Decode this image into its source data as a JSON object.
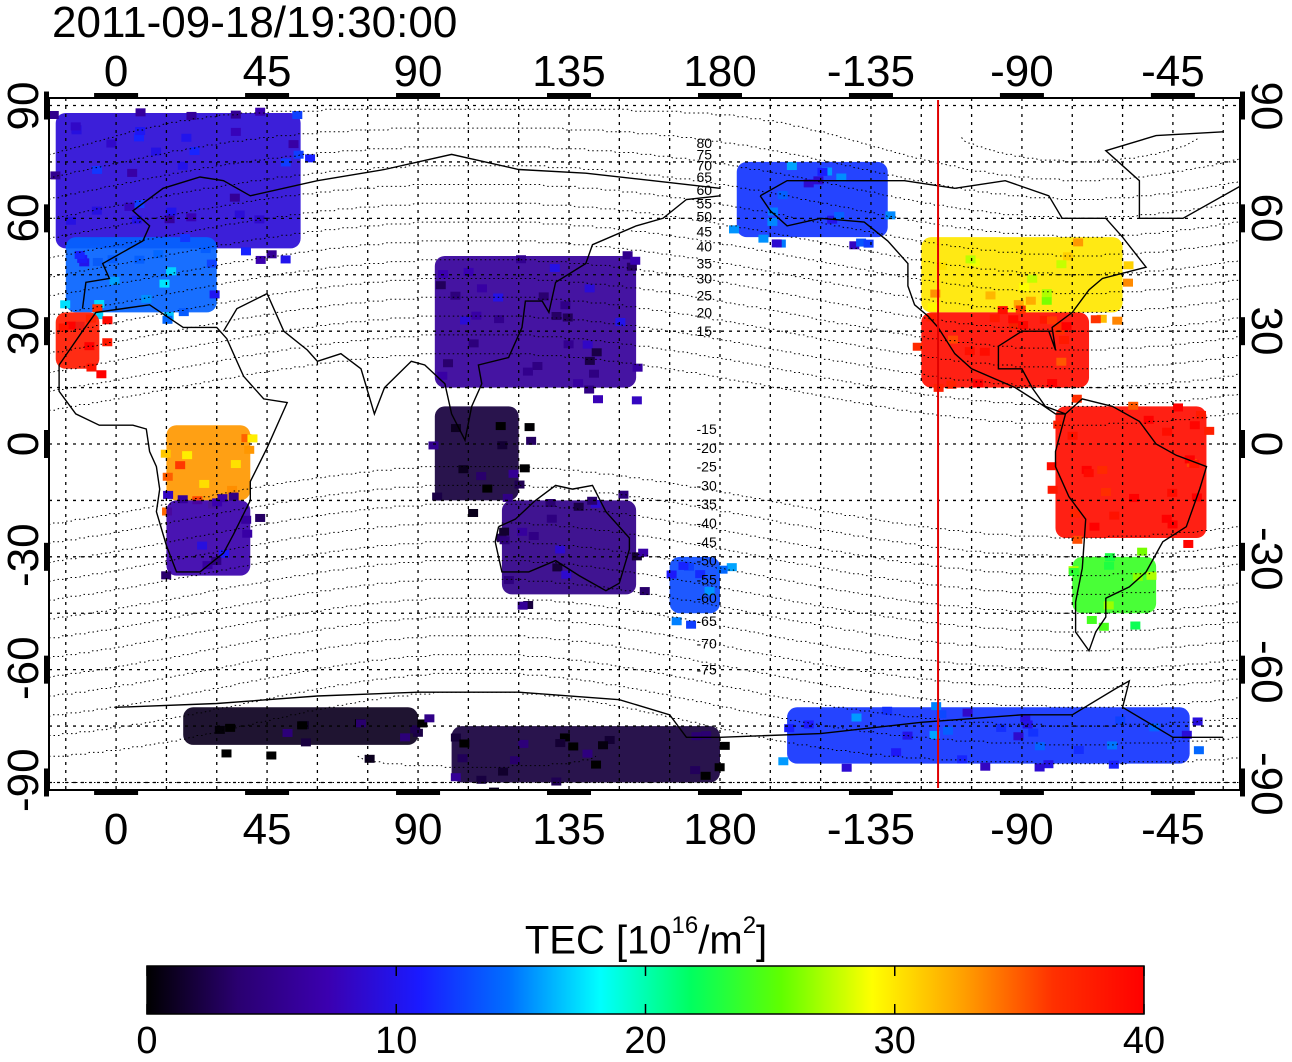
{
  "title": "2011-09-18/19:30:00",
  "axes": {
    "lon_ticks_top": [
      "0",
      "45",
      "90",
      "135",
      "180",
      "-135",
      "-90",
      "-45"
    ],
    "lon_ticks_bottom": [
      "0",
      "45",
      "90",
      "135",
      "180",
      "-135",
      "-90",
      "-45"
    ],
    "lat_ticks_left": [
      "90",
      "60",
      "30",
      "0",
      "-30",
      "-60",
      "-90"
    ],
    "lat_ticks_right": [
      "90",
      "60",
      "30",
      "0",
      "-30",
      "-60",
      "-90"
    ],
    "lon_range": [
      -20,
      335
    ],
    "lat_range": [
      -92,
      92
    ]
  },
  "contour_labels": [
    "80",
    "75",
    "70",
    "65",
    "60",
    "55",
    "50",
    "45",
    "40",
    "35",
    "30",
    "25",
    "20",
    "15",
    "-15",
    "-20",
    "-25",
    "-30",
    "-35",
    "-40",
    "-45",
    "-50",
    "-55",
    "-60",
    "-65",
    "-70",
    "-75"
  ],
  "marker_line": {
    "lon": -115,
    "color": "#e00000"
  },
  "colorbar": {
    "label_main": "TEC  [10",
    "label_sup1": "16",
    "label_mid": "/m",
    "label_sup2": "2",
    "label_end": "]",
    "ticks": [
      "0",
      "10",
      "20",
      "30",
      "40"
    ],
    "min": 0,
    "max": 40,
    "colors": [
      "#000000",
      "#2a0070",
      "#3b00b0",
      "#1a1aff",
      "#0070ff",
      "#00ffff",
      "#00ff60",
      "#60ff00",
      "#ffff00",
      "#ffa000",
      "#ff3000",
      "#ff0000"
    ]
  },
  "chart_data": {
    "type": "heatmap",
    "title": "2011-09-18/19:30:00",
    "xlabel": "",
    "ylabel": "",
    "colorbar_label": "TEC [10^16/m^2]",
    "value_range": [
      0,
      40
    ],
    "regions": [
      {
        "lon": [
          -18,
          55
        ],
        "lat": [
          52,
          88
        ],
        "tec": 9
      },
      {
        "lon": [
          -15,
          30
        ],
        "lat": [
          35,
          55
        ],
        "tec": 14
      },
      {
        "lon": [
          -18,
          -5
        ],
        "lat": [
          20,
          35
        ],
        "tec": 38
      },
      {
        "lon": [
          15,
          40
        ],
        "lat": [
          -15,
          5
        ],
        "tec": 33
      },
      {
        "lon": [
          15,
          40
        ],
        "lat": [
          -35,
          -15
        ],
        "tec": 7
      },
      {
        "lon": [
          95,
          155
        ],
        "lat": [
          15,
          50
        ],
        "tec": 6
      },
      {
        "lon": [
          95,
          120
        ],
        "lat": [
          -15,
          10
        ],
        "tec": 2
      },
      {
        "lon": [
          115,
          155
        ],
        "lat": [
          -40,
          -15
        ],
        "tec": 5
      },
      {
        "lon": [
          165,
          180
        ],
        "lat": [
          -45,
          -30
        ],
        "tec": 13
      },
      {
        "lon": [
          185,
          230
        ],
        "lat": [
          55,
          75
        ],
        "tec": 12
      },
      {
        "lon": [
          240,
          300
        ],
        "lat": [
          35,
          55
        ],
        "tec": 30
      },
      {
        "lon": [
          240,
          290
        ],
        "lat": [
          15,
          35
        ],
        "tec": 39
      },
      {
        "lon": [
          280,
          325
        ],
        "lat": [
          -25,
          10
        ],
        "tec": 39
      },
      {
        "lon": [
          285,
          310
        ],
        "lat": [
          -45,
          -30
        ],
        "tec": 24
      },
      {
        "lon": [
          200,
          320
        ],
        "lat": [
          -85,
          -70
        ],
        "tec": 12
      },
      {
        "lon": [
          100,
          180
        ],
        "lat": [
          -90,
          -75
        ],
        "tec": 2
      },
      {
        "lon": [
          20,
          90
        ],
        "lat": [
          -80,
          -70
        ],
        "tec": 1
      }
    ]
  }
}
